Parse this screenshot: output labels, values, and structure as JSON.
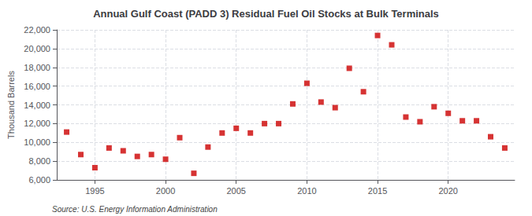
{
  "chart_data": {
    "type": "scatter",
    "title": "Annual Gulf Coast (PADD 3) Residual Fuel Oil Stocks at Bulk Terminals",
    "ylabel": "Thousand Barrels",
    "annotations": [
      "Source: U.S. Energy Information Administration"
    ],
    "x": [
      1993,
      1994,
      1995,
      1996,
      1997,
      1998,
      1999,
      2000,
      2001,
      2002,
      2003,
      2004,
      2005,
      2006,
      2007,
      2008,
      2009,
      2010,
      2011,
      2012,
      2013,
      2014,
      2015,
      2016,
      2017,
      2018,
      2019,
      2020,
      2021,
      2022,
      2023,
      2024
    ],
    "values": [
      11100,
      8700,
      7300,
      9400,
      9100,
      8500,
      8700,
      8200,
      10500,
      6700,
      9500,
      11000,
      11500,
      11000,
      12000,
      12000,
      14100,
      16300,
      14300,
      13700,
      17900,
      15400,
      21400,
      20400,
      12700,
      12200,
      13800,
      13100,
      12300,
      12300,
      10600,
      9400
    ],
    "color": "#cc0000",
    "marker": "square",
    "xlim": [
      1992.3,
      2024.7
    ],
    "xticks": [
      1995,
      2000,
      2005,
      2010,
      2015,
      2020
    ],
    "ylim": [
      6000,
      22000
    ],
    "yticks": [
      {
        "value": 6000,
        "label": "6,000"
      },
      {
        "value": 8000,
        "label": "8,000"
      },
      {
        "value": 10000,
        "label": "10,000"
      },
      {
        "value": 12000,
        "label": "12,000"
      },
      {
        "value": 14000,
        "label": "14,000"
      },
      {
        "value": 16000,
        "label": "16,000"
      },
      {
        "value": 18000,
        "label": "18,000"
      },
      {
        "value": 20000,
        "label": "20,000"
      },
      {
        "value": 22000,
        "label": "22,000"
      }
    ],
    "grid": true
  }
}
